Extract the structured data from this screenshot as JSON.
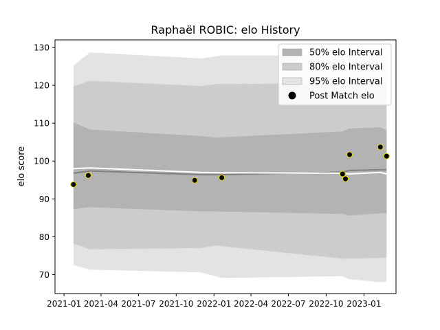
{
  "chart_data": {
    "type": "line",
    "title": "Raphaël ROBIC: elo History",
    "xlabel": "",
    "ylabel": "elo score",
    "x_ticks": [
      "2021-01",
      "2021-04",
      "2021-07",
      "2021-10",
      "2022-01",
      "2022-04",
      "2022-07",
      "2022-10",
      "2023-01"
    ],
    "y_ticks": [
      70,
      80,
      90,
      100,
      110,
      120,
      130
    ],
    "xlim": [
      "2020-12-10",
      "2023-03-20"
    ],
    "ylim": [
      65,
      132
    ],
    "grid": false,
    "legend_position": "top-right",
    "legend": [
      {
        "label": "50% elo Interval",
        "kind": "band",
        "color": "#b3b3b3"
      },
      {
        "label": "80% elo Interval",
        "kind": "band",
        "color": "#cccccc"
      },
      {
        "label": "95% elo Interval",
        "kind": "band",
        "color": "#e3e3e3"
      },
      {
        "label": "Post Match elo",
        "kind": "marker",
        "color": "#000000"
      }
    ],
    "series": [
      {
        "label": "95% elo Interval",
        "kind": "band",
        "color": "#e3e3e3",
        "x": [
          "2021-01-24",
          "2021-03-05",
          "2021-11-30",
          "2022-01-20",
          "2022-11-10",
          "2022-11-25",
          "2023-02-10",
          "2023-02-25"
        ],
        "lower": [
          72.5,
          71.3,
          70.6,
          69.1,
          69.6,
          68.8,
          68.0,
          68.2
        ],
        "upper": [
          125.2,
          128.7,
          127.1,
          127.9,
          127.9,
          128.0,
          128.3,
          128.3
        ]
      },
      {
        "label": "80% elo Interval",
        "kind": "band",
        "color": "#cccccc",
        "x": [
          "2021-01-24",
          "2021-03-05",
          "2021-11-30",
          "2022-01-05",
          "2022-11-10",
          "2023-02-10",
          "2023-02-25"
        ],
        "lower": [
          78.2,
          76.7,
          77.0,
          77.7,
          74.2,
          74.4,
          74.5
        ],
        "upper": [
          119.7,
          121.2,
          119.8,
          120.3,
          120.5,
          120.8,
          120.8
        ]
      },
      {
        "label": "50% elo Interval",
        "kind": "band",
        "color": "#b3b3b3",
        "x": [
          "2021-01-24",
          "2021-03-05",
          "2021-11-30",
          "2022-01-05",
          "2022-11-10",
          "2022-11-25",
          "2023-02-10",
          "2023-02-25"
        ],
        "lower": [
          87.3,
          87.8,
          86.7,
          86.7,
          86.0,
          85.6,
          86.2,
          86.2
        ],
        "upper": [
          110.2,
          108.3,
          106.6,
          106.2,
          107.8,
          108.6,
          108.9,
          108.2
        ]
      },
      {
        "label": "mean",
        "kind": "line",
        "color": "#808080",
        "x": [
          "2021-01-24",
          "2021-03-05",
          "2021-11-30",
          "2022-01-20",
          "2022-11-10",
          "2022-11-25",
          "2023-02-10",
          "2023-02-25"
        ],
        "y": [
          96.8,
          97.4,
          96.4,
          96.4,
          97.1,
          97.5,
          97.7,
          97.7
        ]
      },
      {
        "label": "",
        "kind": "line",
        "color": "#ffffff",
        "x": [
          "2021-01-24",
          "2021-03-05",
          "2021-11-30",
          "2022-01-20",
          "2022-11-10",
          "2022-11-25",
          "2023-02-10",
          "2023-02-25"
        ],
        "y": [
          98.0,
          98.2,
          97.0,
          96.9,
          96.8,
          96.6,
          97.0,
          96.6
        ]
      },
      {
        "label": "Post Match elo",
        "kind": "scatter",
        "color": "#000000",
        "edge_color": "#e6d800",
        "x": [
          "2021-01-24",
          "2021-03-01",
          "2021-11-15",
          "2022-01-20",
          "2022-11-10",
          "2022-11-17",
          "2022-11-27",
          "2023-02-10",
          "2023-02-25"
        ],
        "y": [
          93.8,
          96.2,
          94.9,
          95.6,
          96.6,
          95.3,
          101.7,
          103.7,
          101.3
        ]
      }
    ]
  }
}
